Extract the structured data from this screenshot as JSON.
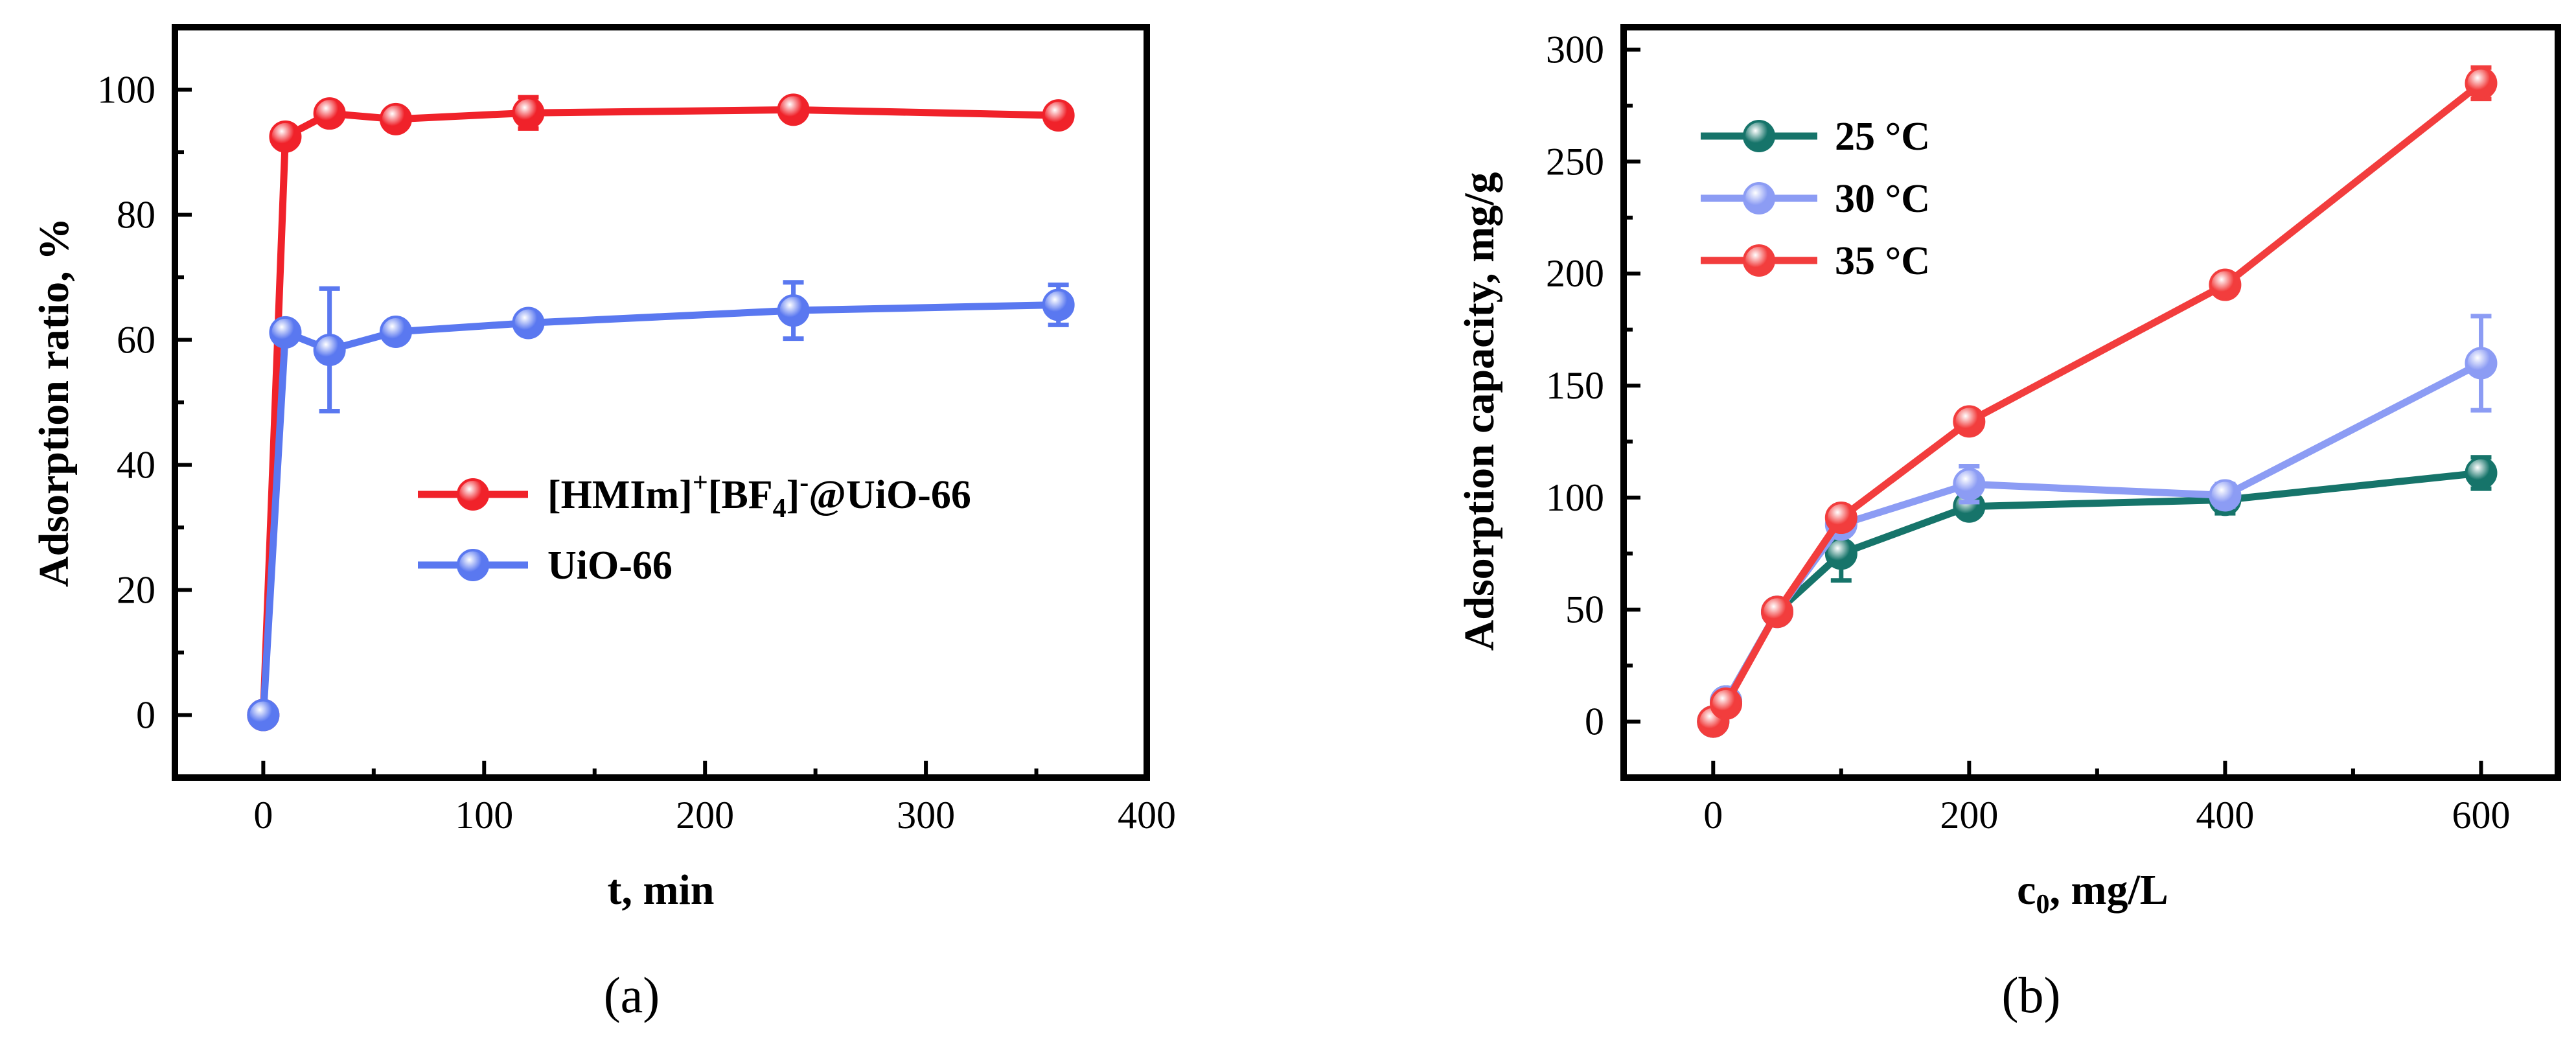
{
  "chart_data": [
    {
      "type": "line",
      "panel": "(a)",
      "xlabel": "t, min",
      "ylabel": "Adsorption ratio, %",
      "xlim": [
        -40,
        400
      ],
      "ylim": [
        -10,
        110
      ],
      "xticks": [
        0,
        100,
        200,
        300,
        400
      ],
      "yticks": [
        0,
        20,
        40,
        60,
        80,
        100
      ],
      "legend_position": "center-right",
      "series": [
        {
          "name": "[HMIm]+[BF4]-@UiO-66",
          "legend": {
            "main": "[HMIm]",
            "sup1": "+",
            "mid": "[BF",
            "sub": "4",
            "close": "]",
            "sup2": "-",
            "tail": "@UiO-66"
          },
          "color": "#f0222a",
          "x": [
            0,
            10,
            30,
            60,
            120,
            240,
            360
          ],
          "y": [
            0,
            92.5,
            96.2,
            95.3,
            96.3,
            96.8,
            95.9
          ],
          "err": [
            0,
            1.2,
            1.5,
            1.3,
            2.5,
            1.5,
            1.3
          ]
        },
        {
          "name": "UiO-66",
          "legend": {
            "main": "UiO-66",
            "sup1": "",
            "mid": "",
            "sub": "",
            "close": "",
            "sup2": "",
            "tail": ""
          },
          "color": "#5a78f0",
          "x": [
            0,
            10,
            30,
            60,
            120,
            240,
            360
          ],
          "y": [
            0,
            61.2,
            58.4,
            61.3,
            62.7,
            64.7,
            65.6
          ],
          "err": [
            0,
            1.5,
            9.8,
            1.5,
            1.5,
            4.5,
            3.2
          ]
        }
      ]
    },
    {
      "type": "line",
      "panel": "(b)",
      "xlabel": "c0, mg/L",
      "xlabel_parts": {
        "main": "c",
        "sub": "0",
        "tail": ", mg/L"
      },
      "ylabel": "Adsorption capacity, mg/g",
      "xlim": [
        -70,
        660
      ],
      "ylim": [
        -25,
        310
      ],
      "xticks": [
        0,
        200,
        400,
        600
      ],
      "yticks": [
        0,
        50,
        100,
        150,
        200,
        250,
        300
      ],
      "legend_position": "top-left",
      "series": [
        {
          "name": "25 °C",
          "color": "#16746a",
          "x": [
            0,
            10,
            50,
            100,
            200,
            400,
            600
          ],
          "y": [
            0,
            9,
            49,
            75,
            96,
            99,
            111
          ],
          "err": [
            0,
            1.5,
            2,
            12,
            4,
            6,
            7
          ]
        },
        {
          "name": "30 °C",
          "color": "#8c9cf4",
          "x": [
            0,
            10,
            50,
            100,
            200,
            400,
            600
          ],
          "y": [
            0,
            9,
            49,
            88,
            106,
            101,
            160
          ],
          "err": [
            0,
            1.5,
            2,
            3,
            8,
            5,
            21
          ]
        },
        {
          "name": "35 °C",
          "color": "#f23d3d",
          "x": [
            0,
            10,
            50,
            100,
            200,
            400,
            600
          ],
          "y": [
            0,
            8,
            49,
            91,
            134,
            195,
            285
          ],
          "err": [
            0,
            1.5,
            2,
            3,
            3,
            3,
            7
          ]
        }
      ]
    }
  ]
}
